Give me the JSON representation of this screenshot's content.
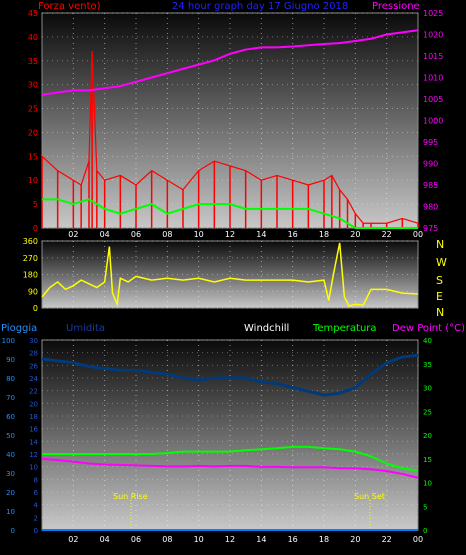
{
  "chart_data": [
    {
      "type": "line",
      "title": "24 hour graph day  17 Giugno 2018",
      "left_label": "Forza vento)",
      "right_label": "Pressione",
      "x_ticks": [
        "02",
        "04",
        "06",
        "08",
        "10",
        "12",
        "14",
        "16",
        "18",
        "20",
        "22",
        "00"
      ],
      "y_left_ticks": [
        "0",
        "5",
        "10",
        "15",
        "20",
        "25",
        "30",
        "35",
        "40",
        "45"
      ],
      "y_right_ticks": [
        "975",
        "980",
        "985",
        "990",
        "995",
        "1000",
        "1005",
        "1010",
        "1015",
        "1020",
        "1025"
      ],
      "y_left_range": [
        0,
        45
      ],
      "y_right_range": [
        975,
        1025
      ],
      "series": [
        {
          "key": "gust",
          "color": "#ff0000",
          "axis": "left",
          "x": [
            0,
            1,
            2,
            2.5,
            3,
            3.2,
            3.5,
            4,
            5,
            6,
            7,
            8,
            9,
            10,
            11,
            12,
            13,
            14,
            15,
            16,
            17,
            18,
            18.5,
            19,
            19.5,
            20,
            20.5,
            21,
            22,
            23,
            24
          ],
          "y": [
            15,
            12,
            10,
            9,
            14,
            37,
            12,
            10,
            11,
            9,
            12,
            10,
            8,
            12,
            14,
            13,
            12,
            10,
            11,
            10,
            9,
            10,
            11,
            8,
            6,
            3,
            1,
            1,
            1,
            2,
            1
          ]
        },
        {
          "key": "speed",
          "color": "#00ff00",
          "axis": "left",
          "x": [
            0,
            1,
            2,
            3,
            4,
            5,
            6,
            7,
            8,
            9,
            10,
            11,
            12,
            13,
            14,
            15,
            16,
            17,
            18,
            19,
            20,
            21,
            22,
            23,
            24
          ],
          "y": [
            6,
            6,
            5,
            6,
            4,
            3,
            4,
            5,
            3,
            4,
            5,
            5,
            5,
            4,
            4,
            4,
            4,
            4,
            3,
            2,
            0,
            0,
            0,
            0,
            0
          ]
        },
        {
          "key": "pressure",
          "color": "#ff00ff",
          "axis": "right",
          "x": [
            0,
            1,
            2,
            3,
            4,
            5,
            6,
            7,
            8,
            9,
            10,
            11,
            12,
            13,
            14,
            15,
            16,
            17,
            18,
            19,
            20,
            21,
            22,
            23,
            24
          ],
          "y": [
            1006,
            1006.5,
            1007,
            1007,
            1007.5,
            1008,
            1009,
            1010,
            1011,
            1012,
            1013,
            1014,
            1015.5,
            1016.5,
            1017,
            1017,
            1017.2,
            1017.5,
            1017.8,
            1018,
            1018.5,
            1019,
            1020,
            1020.5,
            1021
          ]
        }
      ]
    },
    {
      "type": "line",
      "title": "",
      "y_left_ticks": [
        "0",
        "90",
        "180",
        "270",
        "360"
      ],
      "y_left_range": [
        0,
        360
      ],
      "compass": [
        "N",
        "W",
        "S",
        "E",
        "N"
      ],
      "series": [
        {
          "key": "direction",
          "color": "#ffff00",
          "x": [
            0,
            0.5,
            1,
            1.5,
            2,
            2.5,
            3,
            3.5,
            4,
            4.3,
            4.5,
            4.8,
            5,
            5.5,
            6,
            7,
            8,
            9,
            10,
            11,
            12,
            13,
            14,
            15,
            16,
            17,
            18,
            18.3,
            18.6,
            19,
            19.3,
            19.6,
            20,
            20.5,
            21,
            22,
            23,
            24
          ],
          "y": [
            60,
            110,
            140,
            100,
            120,
            150,
            130,
            110,
            140,
            330,
            80,
            20,
            160,
            140,
            170,
            150,
            160,
            150,
            160,
            140,
            160,
            150,
            150,
            150,
            150,
            140,
            150,
            40,
            180,
            350,
            60,
            10,
            20,
            15,
            100,
            100,
            80,
            75
          ]
        }
      ]
    },
    {
      "type": "line",
      "title": "",
      "legend": [
        "Pioggia",
        "Umidita",
        "Windchill",
        "Temperatura",
        "Dew Point (°C)"
      ],
      "x_ticks": [
        "02",
        "04",
        "06",
        "08",
        "10",
        "12",
        "14",
        "16",
        "18",
        "20",
        "22",
        "00"
      ],
      "y_rain_ticks": [
        "0",
        "10",
        "20",
        "30",
        "40",
        "50",
        "60",
        "70",
        "80",
        "90",
        "100"
      ],
      "y_temp_ticks": [
        "0",
        "2",
        "4",
        "6",
        "8",
        "10",
        "12",
        "14",
        "16",
        "18",
        "20",
        "22",
        "24",
        "26",
        "28",
        "30"
      ],
      "y_right_ticks": [
        "0",
        "5",
        "10",
        "15",
        "20",
        "25",
        "30",
        "35",
        "40"
      ],
      "annotations": [
        "Sun Rise",
        "Sun Set"
      ],
      "series": [
        {
          "key": "humidity",
          "color": "#003a78",
          "axis": "rain",
          "x": [
            0,
            1,
            2,
            3,
            4,
            5,
            6,
            7,
            8,
            9,
            10,
            11,
            12,
            13,
            14,
            15,
            16,
            17,
            18,
            19,
            20,
            21,
            22,
            23,
            24
          ],
          "y": [
            90,
            89,
            88,
            86,
            85,
            84,
            84,
            83,
            82,
            80,
            79,
            80,
            80,
            80,
            78,
            77,
            75,
            73,
            71,
            72,
            75,
            82,
            88,
            91,
            92
          ]
        },
        {
          "key": "temperature",
          "color": "#00ff00",
          "axis": "right",
          "x": [
            0,
            1,
            2,
            3,
            4,
            5,
            6,
            7,
            8,
            9,
            10,
            11,
            12,
            13,
            14,
            15,
            16,
            17,
            18,
            19,
            20,
            21,
            22,
            23,
            24
          ],
          "y": [
            16,
            16,
            16,
            16,
            16,
            16,
            16,
            16,
            16.2,
            16.5,
            16.5,
            16.5,
            16.5,
            16.8,
            17,
            17.2,
            17.5,
            17.5,
            17.2,
            17,
            16.5,
            15.5,
            14,
            13,
            12.5
          ]
        },
        {
          "key": "dewpoint",
          "color": "#ff00ff",
          "axis": "right",
          "x": [
            0,
            1,
            2,
            3,
            4,
            5,
            6,
            7,
            8,
            9,
            10,
            11,
            12,
            13,
            14,
            15,
            16,
            17,
            18,
            19,
            20,
            21,
            22,
            23,
            24
          ],
          "y": [
            15,
            14.7,
            14.4,
            14,
            13.8,
            13.7,
            13.6,
            13.5,
            13.4,
            13.4,
            13.5,
            13.4,
            13.5,
            13.5,
            13.3,
            13.3,
            13.2,
            13.2,
            13.2,
            13,
            13,
            12.8,
            12.4,
            11.8,
            11
          ]
        },
        {
          "key": "rain",
          "color": "#0080ff",
          "axis": "rain",
          "x": [
            0,
            24
          ],
          "y": [
            0,
            0
          ]
        }
      ]
    }
  ]
}
